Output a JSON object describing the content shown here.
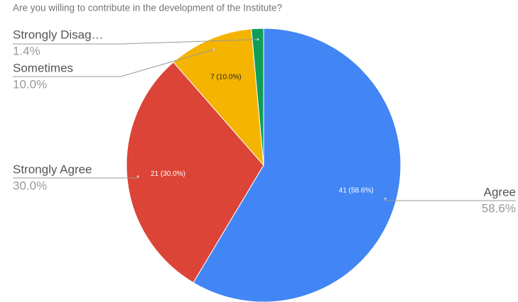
{
  "chart_data": {
    "type": "pie",
    "title": "Are you willing to contribute in the development of the Institute?",
    "categories": [
      "Agree",
      "Strongly Agree",
      "Sometimes",
      "Strongly Disag…"
    ],
    "values": [
      41,
      21,
      7,
      1
    ],
    "value_labels": [
      "41 (58.6%)",
      "21 (30.0%)",
      "7 (10.0%)",
      null
    ],
    "percents": [
      58.6,
      30.0,
      10.0,
      1.4
    ],
    "percent_labels": [
      "58.6%",
      "30.0%",
      "10.0%",
      "1.4%"
    ],
    "colors": [
      "#4285f4",
      "#db4437",
      "#f4b400",
      "#0f9d58"
    ]
  }
}
